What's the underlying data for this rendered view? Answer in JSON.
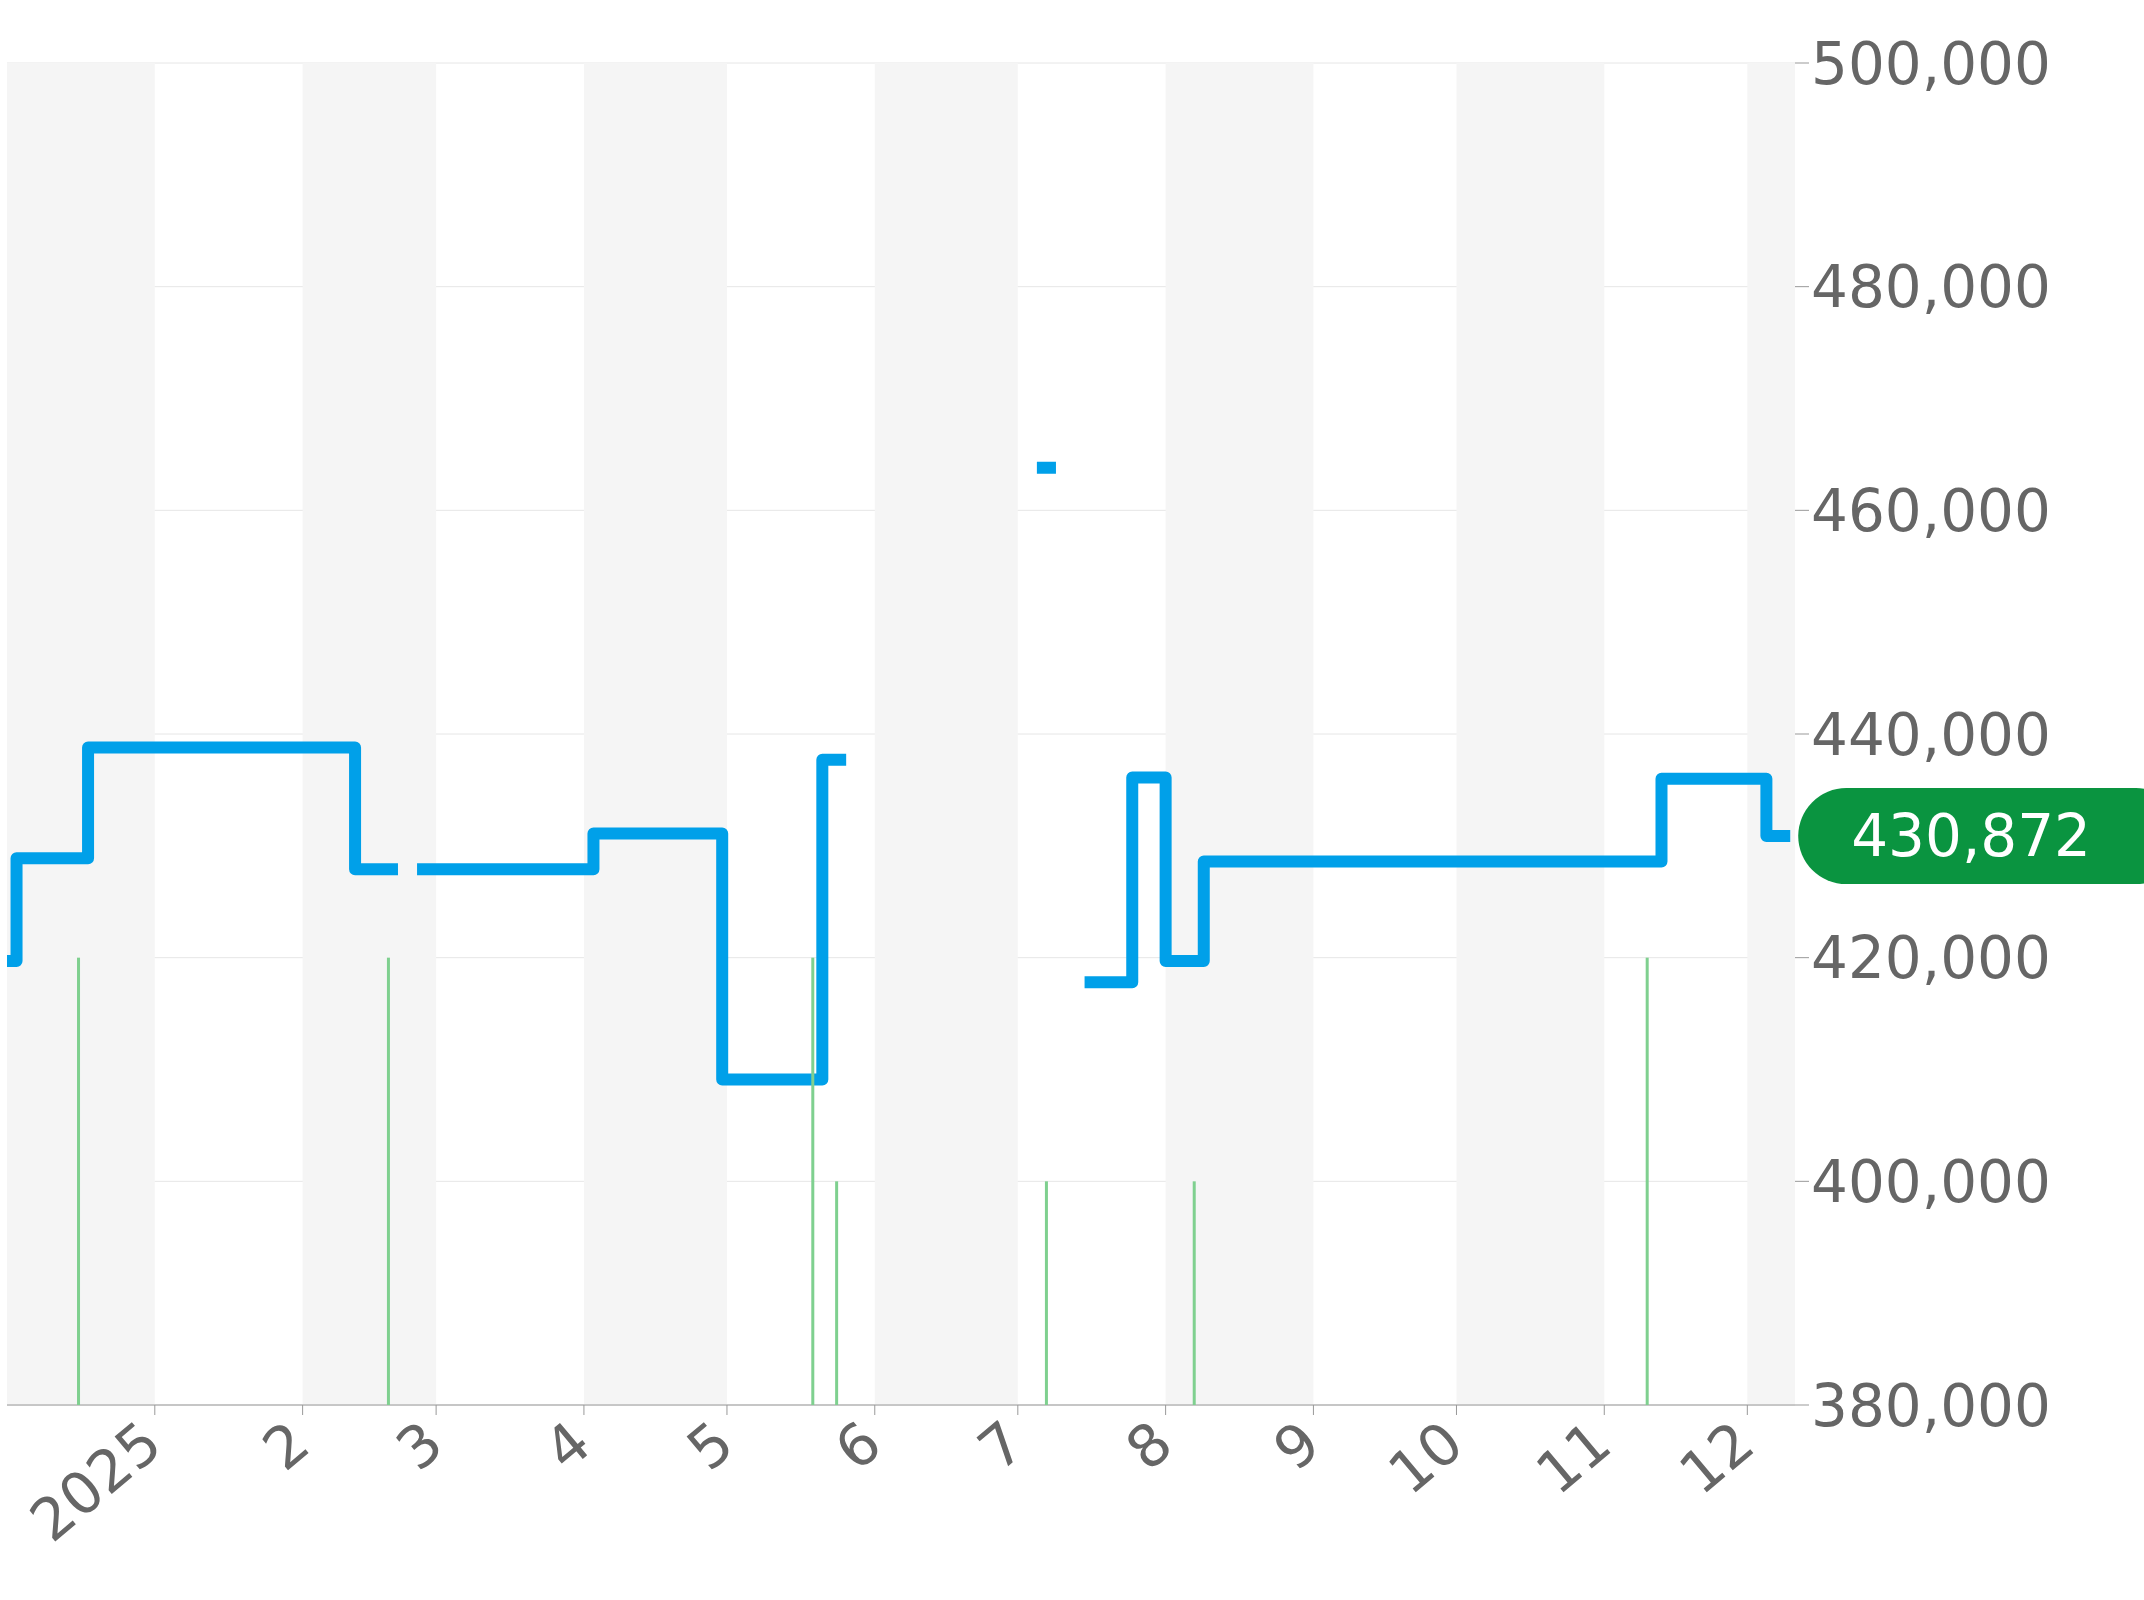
{
  "chart_data": {
    "type": "step",
    "grid": "y",
    "marker": "none",
    "xlim": [
      "2024-12-01",
      "2025-12-11"
    ],
    "xticks": [
      {
        "value": "2025-01-01",
        "label": "2025"
      },
      {
        "value": "2025-02-01",
        "label": "2"
      },
      {
        "value": "2025-03-01",
        "label": "3"
      },
      {
        "value": "2025-04-01",
        "label": "4"
      },
      {
        "value": "2025-05-01",
        "label": "5"
      },
      {
        "value": "2025-06-01",
        "label": "6"
      },
      {
        "value": "2025-07-01",
        "label": "7"
      },
      {
        "value": "2025-08-01",
        "label": "8"
      },
      {
        "value": "2025-09-01",
        "label": "9"
      },
      {
        "value": "2025-10-01",
        "label": "10"
      },
      {
        "value": "2025-11-01",
        "label": "11"
      },
      {
        "value": "2025-12-01",
        "label": "12"
      }
    ],
    "ylim": [
      380000,
      500000
    ],
    "yticks": [
      {
        "value": 380000,
        "label": "380,000"
      },
      {
        "value": 400000,
        "label": "400,000"
      },
      {
        "value": 420000,
        "label": "420,000"
      },
      {
        "value": 440000,
        "label": "440,000"
      },
      {
        "value": 460000,
        "label": "460,000"
      },
      {
        "value": 480000,
        "label": "480,000"
      },
      {
        "value": 500000,
        "label": "500,000"
      }
    ],
    "series": [
      {
        "color": "#00a0e9",
        "x": [
          "2024-12-01",
          "2024-12-03",
          "2024-12-18",
          "2025-02-12",
          "2025-02-21",
          "2025-02-23",
          "2025-02-25",
          "2025-04-03",
          "2025-04-30",
          "2025-05-21",
          "2025-05-26",
          "2025-06-01",
          "2025-07-05",
          "2025-07-09",
          "2025-07-12",
          "2025-07-15",
          "2025-07-25",
          "2025-08-01",
          "2025-08-09",
          "2025-11-13",
          "2025-12-05",
          "2025-12-10"
        ],
        "values": [
          419700,
          428900,
          438800,
          427900,
          427900,
          null,
          427900,
          431100,
          409100,
          437700,
          437700,
          null,
          463800,
          463800,
          null,
          417800,
          436100,
          419700,
          428600,
          436000,
          430872,
          430872
        ]
      },
      {
        "type": "bar",
        "color": "#7fd08f",
        "x": [
          "2024-12-16",
          "2025-02-19",
          "2025-05-19",
          "2025-05-24",
          "2025-07-07",
          "2025-08-07",
          "2025-11-10"
        ],
        "values": [
          420000,
          420000,
          420000,
          400000,
          400000,
          400000,
          420000
        ]
      }
    ],
    "bands": [
      {
        "axis": "x",
        "from": "2024-12-01",
        "to": "2025-01-01",
        "color": "#f5f5f5"
      },
      {
        "axis": "x",
        "from": "2025-02-01",
        "to": "2025-03-01",
        "color": "#f5f5f5"
      },
      {
        "axis": "x",
        "from": "2025-04-01",
        "to": "2025-05-01",
        "color": "#f5f5f5"
      },
      {
        "axis": "x",
        "from": "2025-06-01",
        "to": "2025-07-01",
        "color": "#f5f5f5"
      },
      {
        "axis": "x",
        "from": "2025-08-01",
        "to": "2025-09-01",
        "color": "#f5f5f5"
      },
      {
        "axis": "x",
        "from": "2025-10-01",
        "to": "2025-11-01",
        "color": "#f5f5f5"
      },
      {
        "axis": "x",
        "from": "2025-12-01",
        "to": "2025-12-11",
        "color": "#f5f5f5"
      }
    ],
    "annotations": [
      {
        "text": "430,872",
        "x": "2025-12-10",
        "y": 430872
      }
    ]
  }
}
